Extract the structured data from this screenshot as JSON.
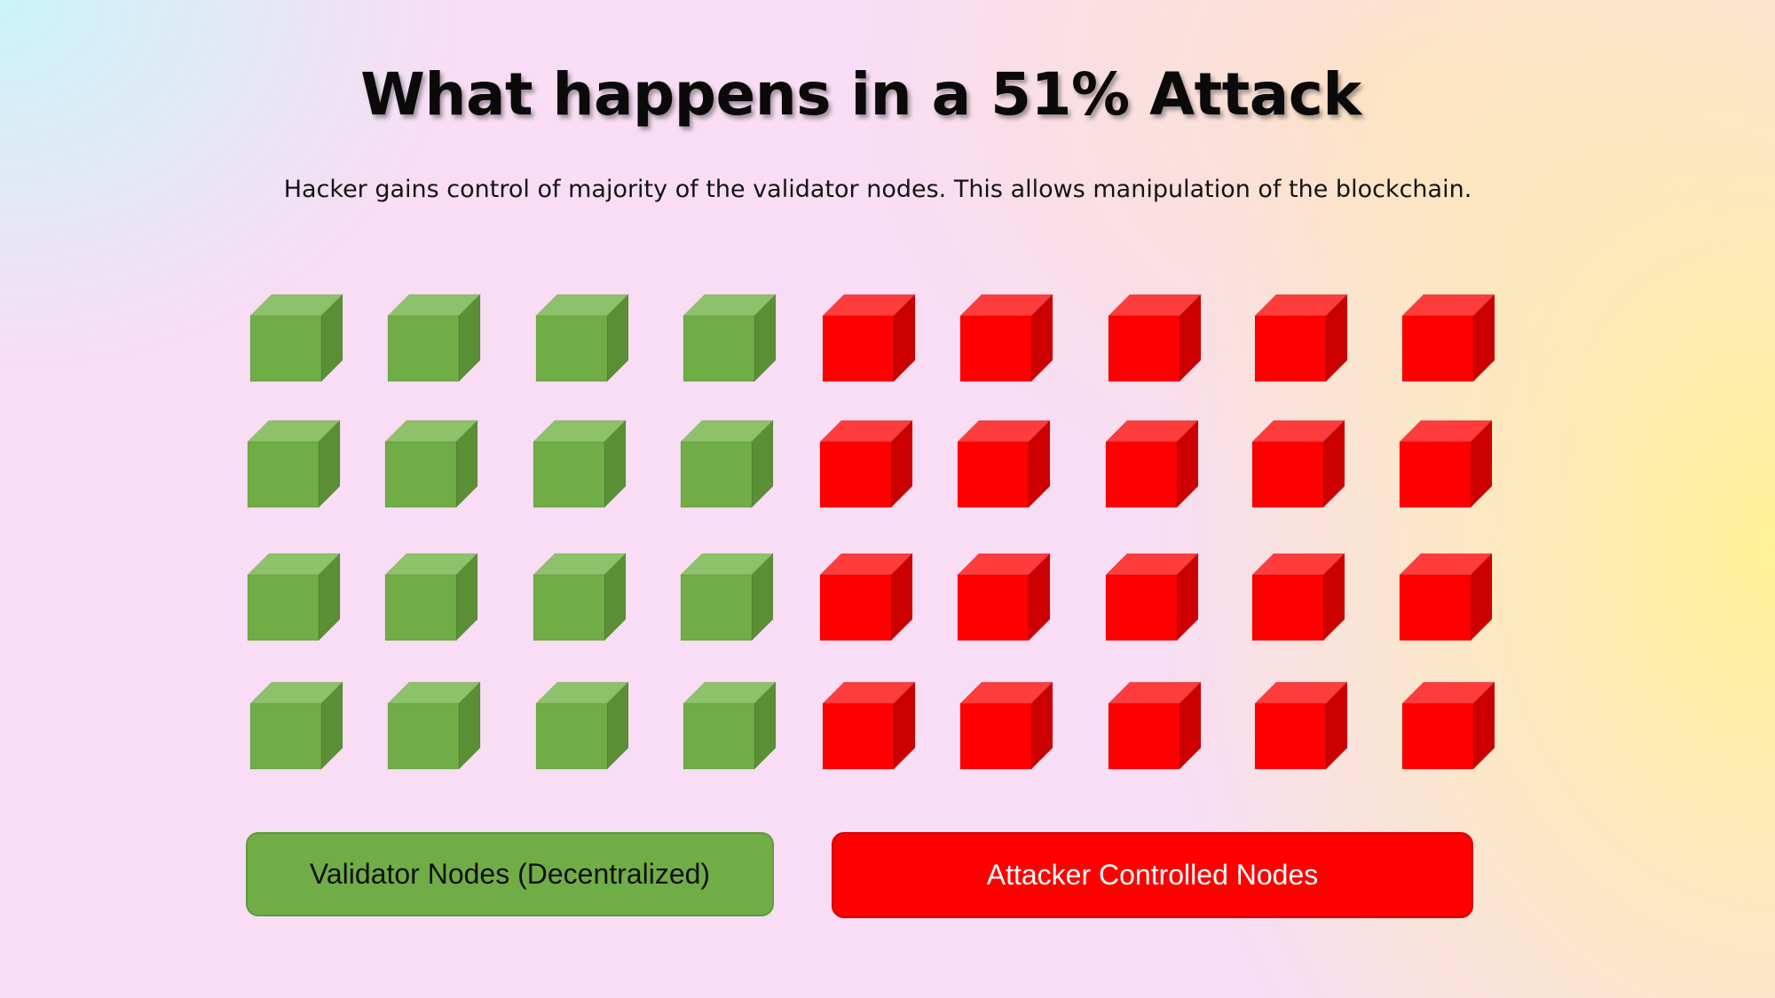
{
  "title": "What happens in a 51% Attack",
  "subtitle": "Hacker gains control of majority of the validator nodes. This allows manipulation of the blockchain.",
  "colors": {
    "validator_front": "#70ad47",
    "validator_top": "#8dc26a",
    "validator_side": "#5a8f36",
    "attacker_front": "#ff0000",
    "attacker_top": "#ff3c3c",
    "attacker_side": "#cc0000"
  },
  "node_grid": {
    "rows": 4,
    "validator_per_row": 4,
    "attacker_per_row": 5
  },
  "legend": {
    "validator_label": "Validator Nodes (Decentralized)",
    "attacker_label": "Attacker Controlled Nodes"
  }
}
